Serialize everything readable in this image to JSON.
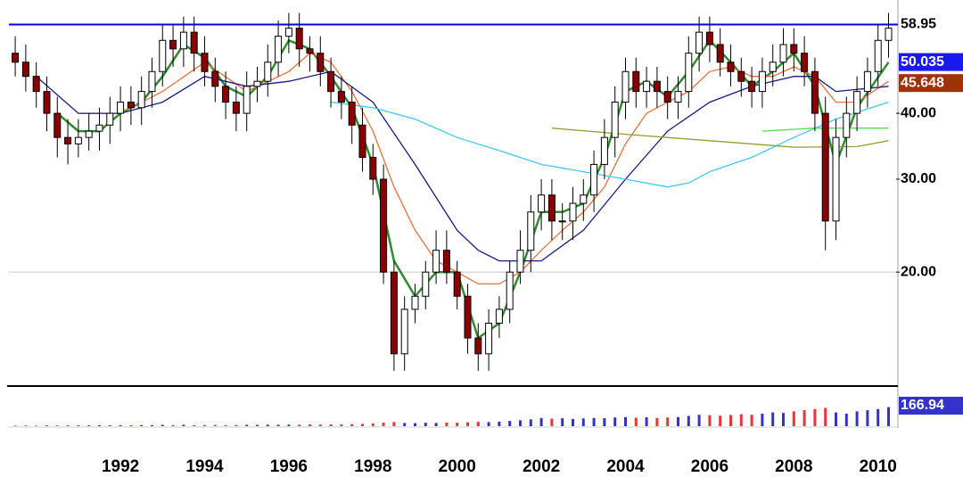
{
  "chart_data": {
    "type": "candlestick",
    "log_y": true,
    "xlim": [
      1989.35,
      2010.43
    ],
    "ylim": [
      12.4,
      65.6
    ],
    "vlim": [
      0,
      320
    ],
    "xticks": [
      1992,
      1994,
      1996,
      1998,
      2000,
      2002,
      2004,
      2006,
      2008,
      2010
    ],
    "yticks": [
      {
        "value": 20,
        "label": "20.00"
      },
      {
        "value": 30,
        "label": "30.00"
      },
      {
        "value": 40,
        "label": "40.00"
      }
    ],
    "up_color": "#ffffff",
    "down_color": "#8b0000",
    "vol_up_color": "#3333cc",
    "vol_down_color": "#ee3333",
    "hlines": [
      {
        "value": 58.95,
        "color": "#0000ee"
      },
      {
        "value": 20,
        "color": "#c8c8c8"
      }
    ],
    "price_markers": [
      {
        "value": 58.95,
        "bg": "#ffffff",
        "fg": "#000000"
      },
      {
        "value": 50.035,
        "bg": "#1a1aee",
        "fg": "#ffffff"
      },
      {
        "value": 45.648,
        "bg": "#a0320a",
        "fg": "#ffffff"
      }
    ],
    "x": [
      1989.5,
      1989.75,
      1990,
      1990.25,
      1990.5,
      1990.75,
      1991,
      1991.25,
      1991.5,
      1991.75,
      1992,
      1992.25,
      1992.5,
      1992.75,
      1993,
      1993.25,
      1993.5,
      1993.75,
      1994,
      1994.25,
      1994.5,
      1994.75,
      1995,
      1995.25,
      1995.5,
      1995.75,
      1996,
      1996.25,
      1996.5,
      1996.75,
      1997,
      1997.25,
      1997.5,
      1997.75,
      1998,
      1998.25,
      1998.5,
      1998.75,
      1999,
      1999.25,
      1999.5,
      1999.75,
      2000,
      2000.25,
      2000.5,
      2000.75,
      2001,
      2001.25,
      2001.5,
      2001.75,
      2002,
      2002.25,
      2002.5,
      2002.75,
      2003,
      2003.25,
      2003.5,
      2003.75,
      2004,
      2004.25,
      2004.5,
      2004.75,
      2005,
      2005.25,
      2005.5,
      2005.75,
      2006,
      2006.25,
      2006.5,
      2006.75,
      2007,
      2007.25,
      2007.5,
      2007.75,
      2008,
      2008.25,
      2008.5,
      2008.75,
      2009,
      2009.25,
      2009.5,
      2009.75,
      2010,
      2010.25
    ],
    "open": [
      52,
      50,
      47,
      44,
      40,
      36,
      35,
      36,
      37,
      38,
      40,
      42,
      41,
      44,
      48,
      55,
      53,
      57,
      52,
      48,
      45,
      42,
      40,
      45,
      46,
      50,
      56,
      58,
      53,
      52,
      48,
      44,
      42,
      38,
      33,
      30,
      20,
      14,
      17,
      18,
      20,
      22,
      20,
      18,
      15,
      14,
      16,
      17,
      20,
      22,
      26,
      28,
      25,
      25,
      27,
      28,
      32,
      36,
      42,
      48,
      44,
      46,
      44,
      42,
      44,
      52,
      57,
      54,
      50,
      48,
      46,
      44,
      48,
      50,
      54,
      52,
      48,
      40,
      25,
      36,
      40,
      44,
      48,
      55
    ],
    "high": [
      56,
      54,
      50,
      47,
      43,
      39,
      39,
      40,
      41,
      43,
      45,
      45,
      47,
      51,
      59,
      59,
      61,
      61,
      56,
      51,
      48,
      45,
      48,
      49,
      54,
      60,
      62,
      62,
      56,
      56,
      51,
      47,
      45,
      41,
      35,
      32,
      21,
      18,
      19,
      21,
      24,
      24,
      21,
      19,
      16,
      17,
      18,
      21,
      24,
      28,
      30,
      30,
      27,
      29,
      30,
      34,
      39,
      45,
      51,
      51,
      49,
      49,
      47,
      47,
      56,
      61,
      61,
      58,
      54,
      51,
      49,
      51,
      54,
      58,
      58,
      56,
      51,
      43,
      39,
      43,
      47,
      51,
      59,
      62
    ],
    "low": [
      47,
      44,
      41,
      37,
      33,
      32,
      33,
      34,
      34,
      35,
      37,
      38,
      38,
      41,
      45,
      49,
      49,
      48,
      45,
      42,
      39,
      37,
      37,
      42,
      43,
      47,
      52,
      49,
      48,
      45,
      41,
      39,
      35,
      31,
      28,
      19,
      13,
      13,
      16,
      17,
      19,
      19,
      17,
      14,
      13,
      13,
      15,
      16,
      19,
      20,
      24,
      23,
      23,
      23,
      25,
      26,
      30,
      33,
      39,
      41,
      41,
      41,
      39,
      39,
      41,
      48,
      50,
      47,
      45,
      43,
      41,
      41,
      45,
      47,
      48,
      45,
      37,
      22,
      23,
      33,
      37,
      41,
      45,
      51
    ],
    "close": [
      50,
      47,
      44,
      40,
      36,
      35,
      36,
      37,
      38,
      40,
      42,
      41,
      44,
      48,
      55,
      53,
      57,
      52,
      48,
      45,
      42,
      40,
      45,
      46,
      50,
      56,
      58,
      53,
      52,
      48,
      44,
      42,
      38,
      33,
      30,
      20,
      14,
      17,
      18,
      20,
      22,
      20,
      18,
      15,
      14,
      16,
      17,
      20,
      22,
      26,
      28,
      25,
      25,
      27,
      28,
      32,
      36,
      42,
      48,
      44,
      46,
      44,
      42,
      44,
      52,
      57,
      54,
      50,
      48,
      46,
      44,
      48,
      50,
      54,
      52,
      48,
      40,
      25,
      36,
      40,
      44,
      48,
      55,
      58
    ],
    "volume": [
      5,
      6,
      5,
      7,
      6,
      8,
      6,
      7,
      8,
      7,
      9,
      8,
      10,
      9,
      11,
      10,
      12,
      9,
      10,
      11,
      9,
      10,
      12,
      11,
      13,
      12,
      14,
      13,
      15,
      14,
      16,
      15,
      18,
      20,
      24,
      30,
      36,
      28,
      26,
      30,
      28,
      32,
      30,
      34,
      38,
      36,
      40,
      46,
      52,
      60,
      72,
      66,
      70,
      64,
      68,
      72,
      70,
      76,
      80,
      74,
      78,
      72,
      76,
      80,
      90,
      100,
      96,
      92,
      98,
      104,
      100,
      110,
      120,
      116,
      130,
      140,
      150,
      160,
      120,
      110,
      130,
      140,
      150,
      166.94
    ],
    "overlays": [
      {
        "color": "#2e8b2e",
        "x": [
          1990.5,
          1991,
          1991.5,
          1992,
          1992.5,
          1993,
          1993.5,
          1994,
          1994.5,
          1995,
          1995.5,
          1996,
          1996.5,
          1997,
          1997.5,
          1998,
          1998.5,
          1999,
          1999.5,
          2000,
          2000.5,
          2001,
          2001.5,
          2002,
          2002.5,
          2003,
          2003.5,
          2004,
          2004.5,
          2005,
          2005.5,
          2006,
          2006.5,
          2007,
          2007.5,
          2008,
          2008.5,
          2009,
          2009.5,
          2010.25
        ],
        "values": [
          40,
          37,
          37,
          40,
          42,
          47,
          54,
          51,
          45,
          43,
          47,
          55,
          53,
          47,
          41,
          32,
          21,
          18,
          20,
          20,
          15,
          16,
          20,
          26,
          26,
          27,
          33,
          44,
          46,
          43,
          48,
          55,
          50,
          45,
          48,
          52,
          45,
          32,
          41,
          50
        ]
      },
      {
        "color": "#e8703a",
        "x": [
          1991,
          1992,
          1993,
          1994,
          1995,
          1996,
          1996.5,
          1997,
          1997.5,
          1998,
          1998.5,
          1999,
          1999.5,
          2000,
          2000.5,
          2001,
          2001.5,
          2002,
          2002.5,
          2003,
          2003.5,
          2004,
          2004.5,
          2005,
          2005.5,
          2006,
          2006.5,
          2007,
          2007.5,
          2008,
          2008.5,
          2009,
          2009.5,
          2010.25
        ],
        "values": [
          40,
          40,
          44,
          50,
          44,
          48,
          52,
          50,
          44,
          37,
          29,
          24,
          21,
          20,
          19,
          19,
          20,
          22,
          24,
          26,
          29,
          35,
          40,
          42,
          44,
          48,
          49,
          47,
          47,
          49,
          47,
          42,
          42,
          46
        ]
      },
      {
        "color": "#1a1a80",
        "x": [
          1990,
          1991,
          1992,
          1993,
          1994,
          1995,
          1996,
          1997,
          1998,
          1999,
          2000,
          2000.5,
          2001,
          2002,
          2003,
          2004,
          2005,
          2006,
          2007,
          2008,
          2008.5,
          2009,
          2010.25
        ],
        "values": [
          47,
          40,
          40,
          42,
          47,
          45,
          46,
          48,
          42,
          32,
          24,
          22,
          21,
          21,
          24,
          30,
          37,
          42,
          45,
          47,
          47,
          44,
          45
        ]
      },
      {
        "color": "#40c8f0",
        "x": [
          1997,
          1998,
          1999,
          2000,
          2001,
          2002,
          2003,
          2004,
          2005,
          2005.5,
          2006,
          2007,
          2008,
          2009,
          2010.25
        ],
        "values": [
          42,
          41,
          39,
          36,
          34,
          32,
          31,
          30,
          29,
          29.5,
          31,
          33,
          36,
          39,
          42
        ]
      },
      {
        "color": "#9a9a30",
        "x": [
          2002.25,
          2004,
          2006,
          2008,
          2009.5,
          2010.25
        ],
        "values": [
          37.5,
          36.5,
          35.5,
          34.5,
          34.6,
          35.5
        ]
      },
      {
        "color": "#50e050",
        "x": [
          2007.25,
          2008.5,
          2010.25
        ],
        "values": [
          37,
          37.5,
          37.5
        ]
      }
    ]
  }
}
